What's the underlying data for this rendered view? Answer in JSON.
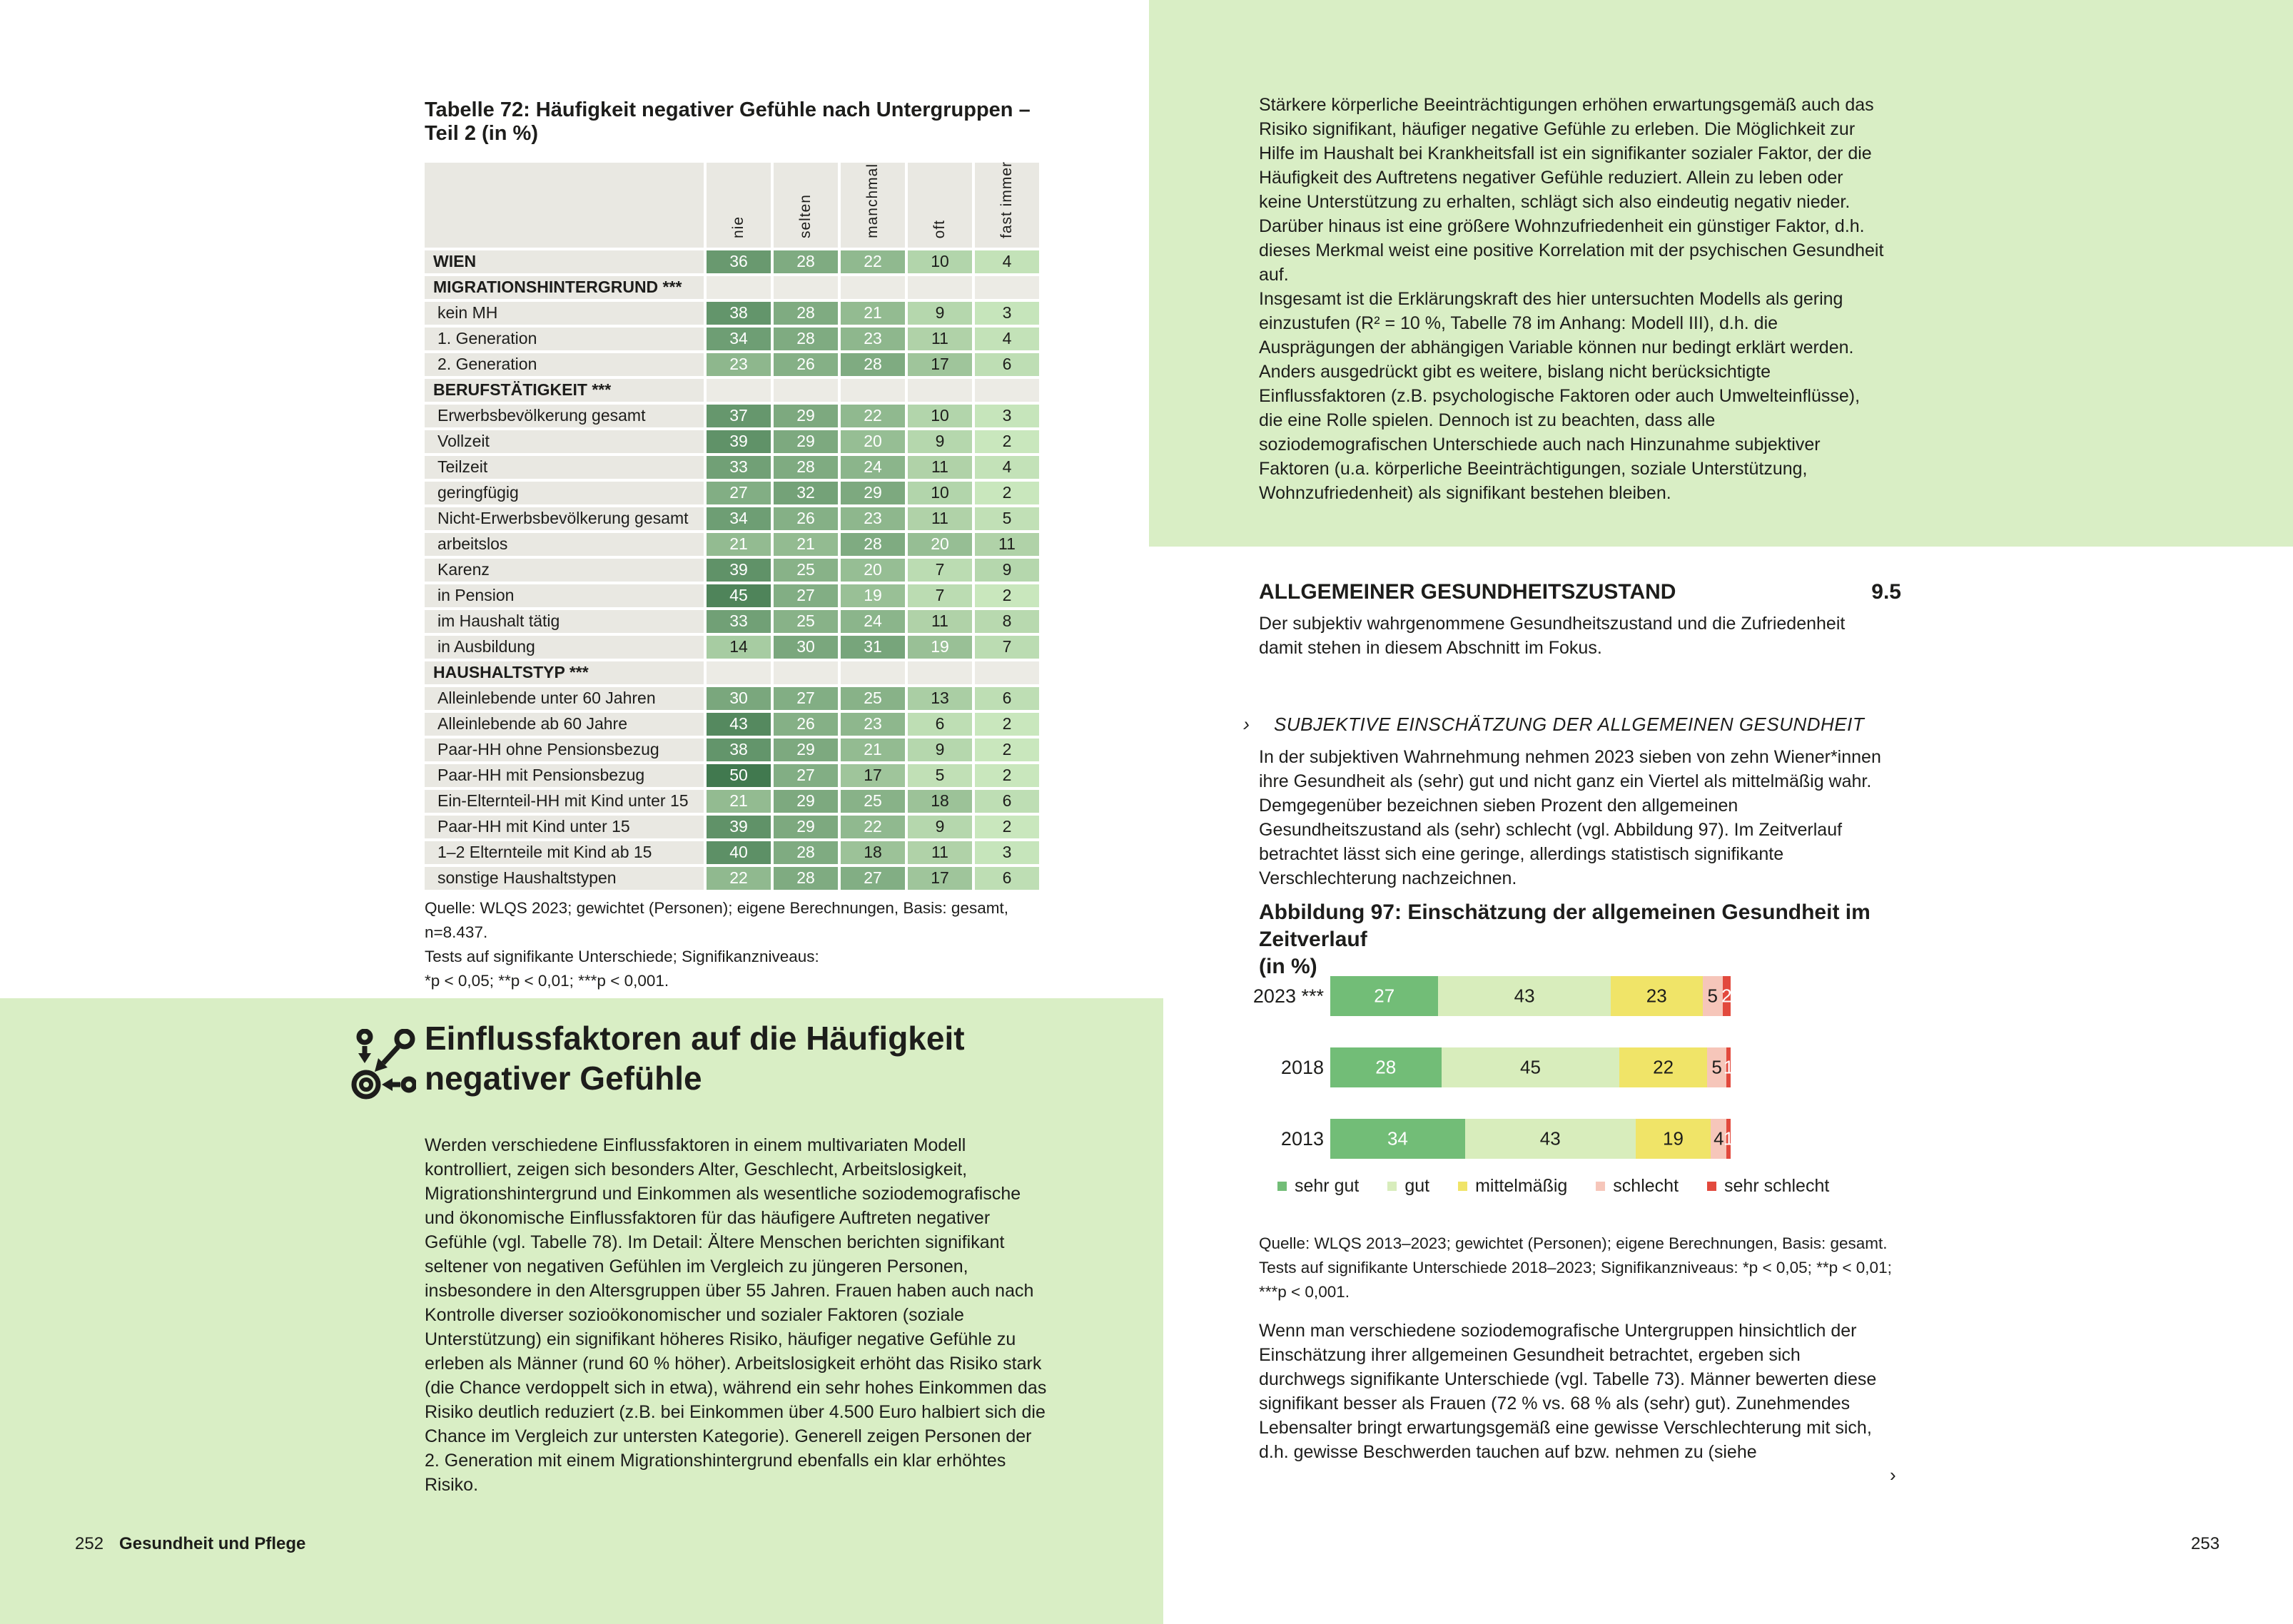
{
  "colors": {
    "page_background": "#ffffff",
    "accent_green_block": "#d9eec5",
    "table_label_cell": "#e9e8e2",
    "table_empty_cell": "#ecebe5",
    "text": "#1d1d1b"
  },
  "page_left": {
    "table_title": "Tabelle 72: Häufigkeit negativer Gefühle nach Untergruppen – Teil 2 (in %)",
    "table": {
      "columns": [
        "nie",
        "selten",
        "manchmal",
        "oft",
        "fast immer"
      ],
      "scale": {
        "min_value": 2,
        "max_value": 50,
        "light": "#c9e7bd",
        "dark": "#41794f",
        "white_text_min": 19
      },
      "rows": [
        {
          "label": "WIEN",
          "bold": true,
          "values": [
            36,
            28,
            22,
            10,
            4
          ]
        },
        {
          "label": "MIGRATIONSHINTERGRUND ***",
          "section": true
        },
        {
          "label": "kein MH",
          "values": [
            38,
            28,
            21,
            9,
            3
          ]
        },
        {
          "label": "1. Generation",
          "values": [
            34,
            28,
            23,
            11,
            4
          ]
        },
        {
          "label": "2. Generation",
          "values": [
            23,
            26,
            28,
            17,
            6
          ]
        },
        {
          "label": "BERUFSTÄTIGKEIT ***",
          "section": true
        },
        {
          "label": "Erwerbsbevölkerung gesamt",
          "values": [
            37,
            29,
            22,
            10,
            3
          ]
        },
        {
          "label": "Vollzeit",
          "values": [
            39,
            29,
            20,
            9,
            2
          ]
        },
        {
          "label": "Teilzeit",
          "values": [
            33,
            28,
            24,
            11,
            4
          ]
        },
        {
          "label": "geringfügig",
          "values": [
            27,
            32,
            29,
            10,
            2
          ]
        },
        {
          "label": "Nicht-Erwerbsbevölkerung gesamt",
          "values": [
            34,
            26,
            23,
            11,
            5
          ]
        },
        {
          "label": "arbeitslos",
          "values": [
            21,
            21,
            28,
            20,
            11
          ]
        },
        {
          "label": "Karenz",
          "values": [
            39,
            25,
            20,
            7,
            9
          ]
        },
        {
          "label": "in Pension",
          "values": [
            45,
            27,
            19,
            7,
            2
          ]
        },
        {
          "label": "im Haushalt tätig",
          "values": [
            33,
            25,
            24,
            11,
            8
          ]
        },
        {
          "label": "in Ausbildung",
          "values": [
            14,
            30,
            31,
            19,
            7
          ]
        },
        {
          "label": "HAUSHALTSTYP ***",
          "section": true
        },
        {
          "label": "Alleinlebende unter 60 Jahren",
          "values": [
            30,
            27,
            25,
            13,
            6
          ]
        },
        {
          "label": "Alleinlebende ab 60 Jahre",
          "values": [
            43,
            26,
            23,
            6,
            2
          ]
        },
        {
          "label": "Paar-HH ohne Pensionsbezug",
          "values": [
            38,
            29,
            21,
            9,
            2
          ]
        },
        {
          "label": "Paar-HH mit Pensionsbezug",
          "values": [
            50,
            27,
            17,
            5,
            2
          ]
        },
        {
          "label": "Ein-Elternteil-HH mit Kind unter 15",
          "values": [
            21,
            29,
            25,
            18,
            6
          ]
        },
        {
          "label": "Paar-HH mit Kind unter 15",
          "values": [
            39,
            29,
            22,
            9,
            2
          ]
        },
        {
          "label": "1–2 Elternteile mit Kind ab 15",
          "values": [
            40,
            28,
            18,
            11,
            3
          ]
        },
        {
          "label": "sonstige Haushaltstypen",
          "values": [
            22,
            28,
            27,
            17,
            6
          ]
        }
      ]
    },
    "table_source_lines": [
      "Quelle: WLQS 2023; gewichtet (Personen); eigene Berechnungen, Basis: gesamt, n=8.437.",
      "Tests auf signifikante Unterschiede; Signifikanzniveaus:",
      "*p < 0,05; **p < 0,01; ***p < 0,001."
    ],
    "section": {
      "icon": "influence-factors-icon",
      "heading_lines": [
        "Einflussfaktoren auf die Häufigkeit",
        "negativer Gefühle"
      ],
      "body": "Werden verschiedene Einflussfaktoren in einem multivariaten Modell kontrolliert, zeigen sich besonders Alter, Geschlecht, Arbeitslosigkeit, Migrationshintergrund und Einkommen als wesentliche soziodemografische und ökonomische Einflussfaktoren für das häufigere Auftreten negativer Gefühle (vgl. Tabelle 78). Im Detail: Ältere Menschen berichten signifikant seltener von negativen Gefühlen im Vergleich zu jüngeren Personen, insbesondere in den Altersgruppen über 55 Jahren. Frauen haben auch nach Kontrolle diverser sozioökonomischer und sozialer Faktoren (soziale Unterstützung) ein signifikant höheres Risiko, häufiger negative Gefühle zu erleben als Männer (rund 60 % höher). Arbeitslosigkeit erhöht das Risiko stark (die Chance verdoppelt sich in etwa), während ein sehr hohes Einkommen das Risiko deutlich reduziert (z.B. bei Einkommen über 4.500 Euro halbiert sich die Chance im Vergleich zur untersten Kategorie). Generell zeigen Personen der 2. Generation mit einem Migrationshintergrund ebenfalls ein klar erhöhtes Risiko."
    },
    "footer": {
      "page_number": "252",
      "chapter_title": "Gesundheit und Pflege"
    }
  },
  "page_right": {
    "top_paragraphs": [
      "Stärkere körperliche Beeinträchtigungen erhöhen erwartungsgemäß auch das Risiko signifikant, häufiger negative Gefühle zu erleben. Die Möglichkeit zur Hilfe im Haushalt bei Krankheitsfall ist ein signifikanter sozialer Faktor, der die Häufigkeit des Auftretens negativer Gefühle reduziert. Allein zu leben oder keine Unterstützung zu erhalten, schlägt sich also eindeutig negativ nieder. Darüber hinaus ist eine größere Wohnzufriedenheit ein günstiger Faktor, d.h. dieses Merkmal weist eine positive Korrelation mit der psychischen Gesundheit auf.",
      "Insgesamt ist die Erklärungskraft des hier untersuchten Modells als gering einzustufen (R² = 10 %, Tabelle 78 im Anhang: Modell III), d.h. die Ausprägungen der abhängigen Variable können nur bedingt erklärt werden. Anders ausgedrückt gibt es weitere, bislang nicht berücksichtigte Einflussfaktoren (z.B. psychologische Faktoren oder auch Umwelteinflüsse), die eine Rolle spielen. Dennoch ist zu beachten, dass alle soziodemografischen Unterschiede auch nach Hinzunahme subjektiver Faktoren (u.a. körperliche Beeinträchtigungen, soziale Unterstützung, Wohnzufriedenheit) als signifikant bestehen bleiben."
    ],
    "section_number": "9.5",
    "section_heading": "ALLGEMEINER GESUNDHEITSZUSTAND",
    "section_intro": "Der subjektiv wahrgenommene Gesundheitszustand und die Zufriedenheit damit stehen in diesem Abschnitt im Fokus.",
    "subsection_marker": "›",
    "subsection_heading": "SUBJEKTIVE EINSCHÄTZUNG DER ALLGEMEINEN GESUNDHEIT",
    "subsection_body": "In der subjektiven Wahrnehmung nehmen 2023 sieben von zehn Wiener*innen ihre Gesundheit als (sehr) gut und nicht ganz ein Viertel als mittelmäßig wahr. Demgegenüber bezeichnen sieben Prozent den allgemeinen Gesundheitszustand als (sehr) schlecht (vgl. Abbildung 97). Im Zeitverlauf betrachtet lässt sich eine geringe, allerdings statistisch signifikante Verschlechterung nachzeichnen.",
    "figure_title_lines": [
      "Abbildung 97: Einschätzung der allgemeinen Gesundheit im Zeitverlauf",
      "(in %)"
    ],
    "figure_source_lines": [
      "Quelle: WLQS 2013–2023; gewichtet (Personen); eigene Berechnungen, Basis: gesamt.",
      "Tests auf signifikante Unterschiede 2018–2023; Signifikanzniveaus: *p < 0,05; **p < 0,01;",
      "***p < 0,001."
    ],
    "closing_paragraph": "Wenn man verschiedene soziodemografische Untergruppen hinsichtlich der Einschätzung ihrer allgemeinen Gesundheit betrachtet, ergeben sich durchwegs signifikante Unterschiede (vgl. Tabelle 73). Männer bewerten diese signifikant besser als Frauen (72 % vs. 68 % als (sehr) gut). Zunehmendes Lebensalter bringt erwartungsgemäß eine gewisse Verschlechterung mit sich, d.h. gewisse Beschwerden tauchen auf bzw. nehmen zu (siehe",
    "continuation_marker": "›",
    "footer_page_number": "253"
  },
  "chart_data": {
    "type": "bar",
    "stacked": true,
    "orientation": "horizontal",
    "title": "Abbildung 97: Einschätzung der allgemeinen Gesundheit im Zeitverlauf (in %)",
    "categories": [
      "2023 ***",
      "2018",
      "2013"
    ],
    "series": [
      {
        "name": "sehr gut",
        "color": "#72bd77",
        "label_color": "#ffffff",
        "values": [
          27,
          28,
          34
        ]
      },
      {
        "name": "gut",
        "color": "#d8edbc",
        "label_color": "#1d1d1b",
        "values": [
          43,
          45,
          43
        ]
      },
      {
        "name": "mittelmäßig",
        "color": "#f0e468",
        "label_color": "#1d1d1b",
        "values": [
          23,
          22,
          19
        ]
      },
      {
        "name": "schlecht",
        "color": "#f6c6ba",
        "label_color": "#1d1d1b",
        "values": [
          5,
          5,
          4
        ]
      },
      {
        "name": "sehr schlecht",
        "color": "#e2493d",
        "label_color": "#ffffff",
        "values": [
          2,
          1,
          1
        ]
      }
    ],
    "xlim": [
      0,
      100
    ],
    "value_labels": true,
    "legend_position": "bottom",
    "grid": false
  }
}
